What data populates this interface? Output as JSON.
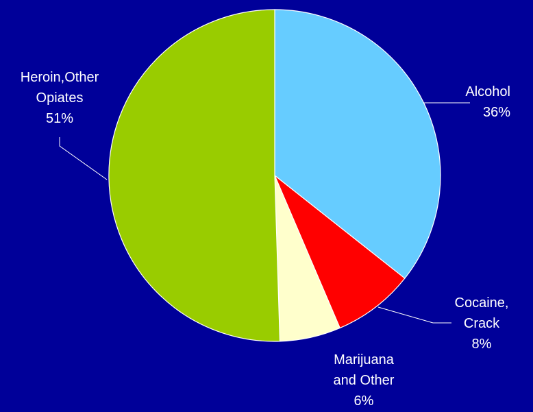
{
  "chart_data": {
    "type": "pie",
    "title": "",
    "legend": "none",
    "slices": [
      {
        "name_lines": [
          "Alcohol"
        ],
        "value": 36,
        "value_label": "36%",
        "color": "#66ccff"
      },
      {
        "name_lines": [
          "Cocaine,",
          "Crack"
        ],
        "value": 8,
        "value_label": "8%",
        "color": "#ff0000"
      },
      {
        "name_lines": [
          "Marijuana",
          "and Other"
        ],
        "value": 6,
        "value_label": "6%",
        "color": "#ffffcc"
      },
      {
        "name_lines": [
          "Heroin,Other",
          "Opiates"
        ],
        "value": 51,
        "value_label": "51%",
        "color": "#99cc00"
      }
    ]
  }
}
